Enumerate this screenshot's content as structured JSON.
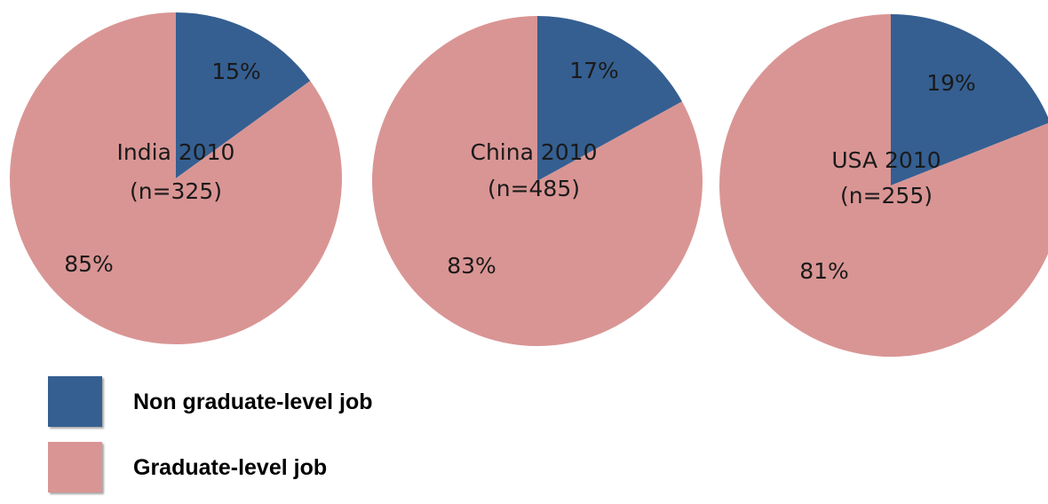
{
  "chart_data": [
    {
      "type": "pie",
      "title_lines": [
        "India 2010",
        "(n=325)"
      ],
      "slices": [
        {
          "label": "Non graduate-level job",
          "value": 15,
          "text": "15%"
        },
        {
          "label": "Graduate-level job",
          "value": 85,
          "text": "85%"
        }
      ]
    },
    {
      "type": "pie",
      "title_lines": [
        "China 2010",
        "(n=485)"
      ],
      "slices": [
        {
          "label": "Non graduate-level job",
          "value": 17,
          "text": "17%"
        },
        {
          "label": "Graduate-level job",
          "value": 83,
          "text": "83%"
        }
      ]
    },
    {
      "type": "pie",
      "title_lines": [
        "USA 2010",
        "(n=255)"
      ],
      "slices": [
        {
          "label": "Non graduate-level job",
          "value": 19,
          "text": "19%"
        },
        {
          "label": "Graduate-level job",
          "value": 81,
          "text": "81%"
        }
      ]
    }
  ],
  "legend": {
    "placement": "bottom-left",
    "items": [
      {
        "label": "Non graduate-level job",
        "color": "#355f91"
      },
      {
        "label": "Graduate-level job",
        "color": "#d99594"
      }
    ]
  },
  "colors": {
    "non_graduate": "#355f91",
    "graduate": "#d99594"
  }
}
